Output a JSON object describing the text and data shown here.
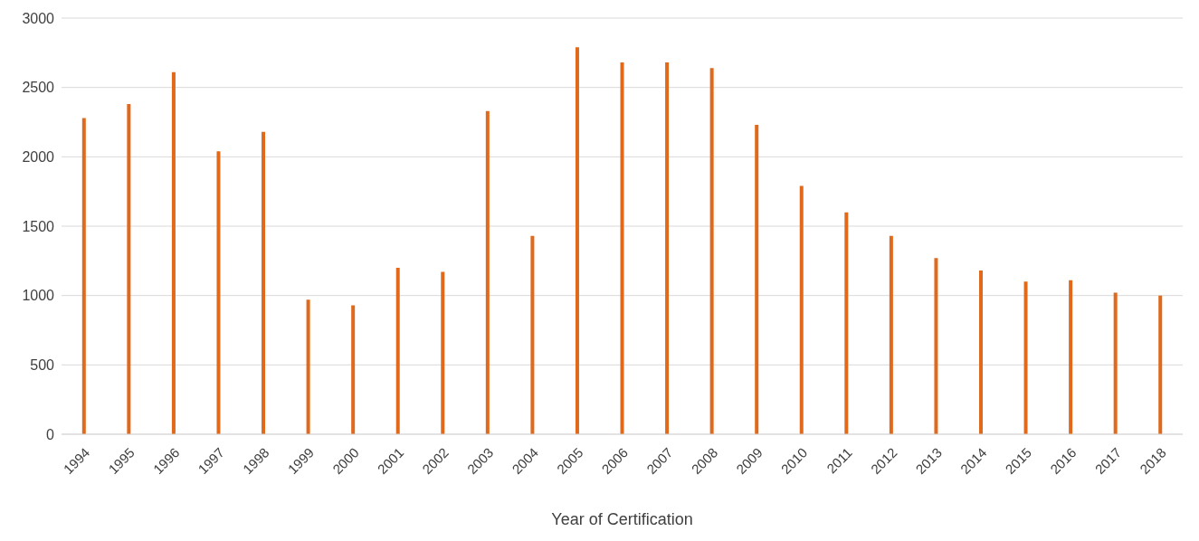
{
  "chart_data": {
    "type": "bar",
    "xlabel": "Year of Certification",
    "categories": [
      "1994",
      "1995",
      "1996",
      "1997",
      "1998",
      "1999",
      "2000",
      "2001",
      "2002",
      "2003",
      "2004",
      "2005",
      "2006",
      "2007",
      "2008",
      "2009",
      "2010",
      "2011",
      "2012",
      "2013",
      "2014",
      "2015",
      "2016",
      "2017",
      "2018"
    ],
    "values": [
      2280,
      2380,
      2610,
      2040,
      2180,
      970,
      930,
      1200,
      1170,
      2330,
      1430,
      2790,
      2680,
      2680,
      2640,
      2230,
      1790,
      1600,
      1430,
      1270,
      1180,
      1100,
      1110,
      1020,
      1000
    ],
    "color": "#e0691c",
    "ylim": [
      0,
      3000
    ],
    "yticks": [
      0,
      500,
      1000,
      1500,
      2000,
      2500,
      3000
    ],
    "grid": "y"
  }
}
